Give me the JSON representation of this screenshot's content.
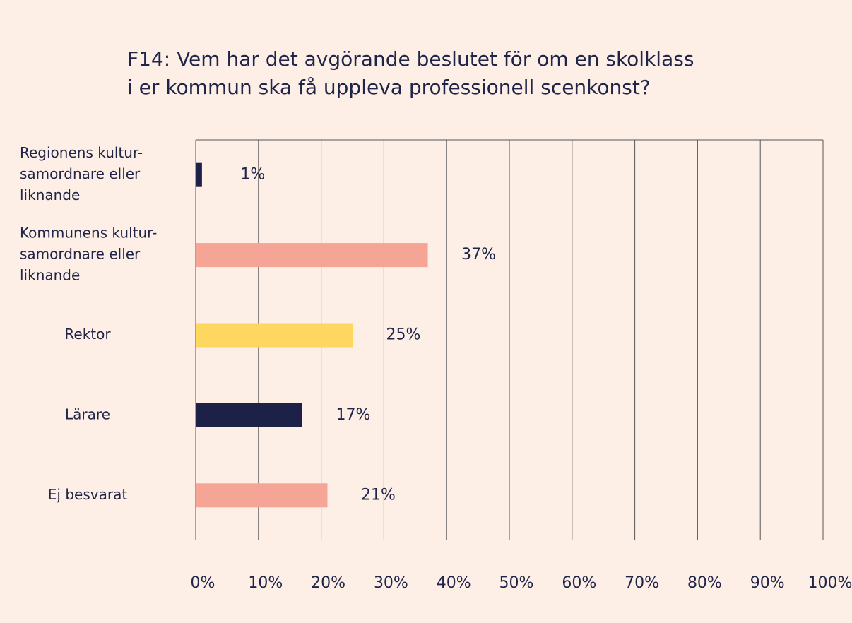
{
  "chart_data": {
    "type": "bar",
    "orientation": "horizontal",
    "title": [
      "F14: Vem har det avgörande beslutet för om en skolklass",
      "i er kommun ska få uppleva professionell scenkonst?"
    ],
    "categories": [
      [
        "Regionens kultur-",
        "samordnare eller",
        "liknande"
      ],
      [
        "Kommunens kultur-",
        "samordnare eller",
        "liknande"
      ],
      [
        "Rektor"
      ],
      [
        "Lärare"
      ],
      [
        "Ej besvarat"
      ]
    ],
    "values": [
      1,
      37,
      25,
      17,
      21
    ],
    "value_labels": [
      "1%",
      "37%",
      "25%",
      "17%",
      "21%"
    ],
    "colors": [
      "#1e2147",
      "#f4a596",
      "#fdd75f",
      "#1e2147",
      "#f4a596"
    ],
    "xlim": [
      0,
      100
    ],
    "xticks": [
      {
        "value": 0,
        "label": "0%"
      },
      {
        "value": 10,
        "label": "10%"
      },
      {
        "value": 20,
        "label": "20%"
      },
      {
        "value": 30,
        "label": "30%"
      },
      {
        "value": 40,
        "label": "40%"
      },
      {
        "value": 50,
        "label": "50%"
      },
      {
        "value": 60,
        "label": "60%"
      },
      {
        "value": 70,
        "label": "70%"
      },
      {
        "value": 80,
        "label": "80%"
      },
      {
        "value": 90,
        "label": "90%"
      },
      {
        "value": 100,
        "label": "100%"
      }
    ],
    "grid": true
  }
}
